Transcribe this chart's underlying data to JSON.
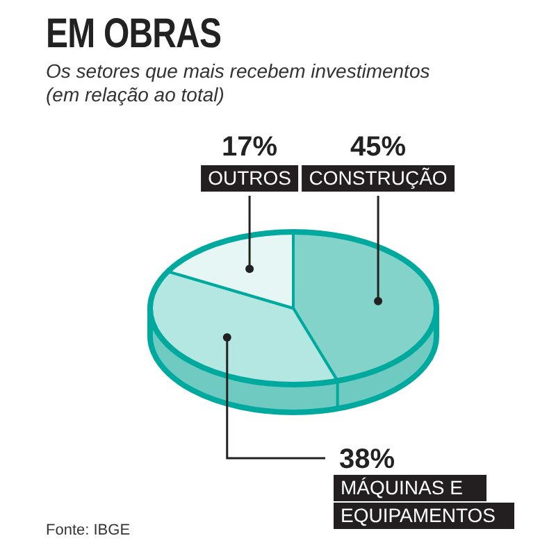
{
  "chart_data": {
    "type": "pie",
    "title": "EM OBRAS",
    "subtitle": "Os setores que mais recebem investimentos (em relação ao total)",
    "categories": [
      "CONSTRUÇÃO",
      "MÁQUINAS E EQUIPAMENTOS",
      "OUTROS"
    ],
    "values": [
      45,
      38,
      17
    ],
    "colors": [
      "#84d3cb",
      "#b4e6e2",
      "#e6f6f5"
    ],
    "value_labels": [
      "45%",
      "38%",
      "17%"
    ],
    "annotations": [
      "Fonte: IBGE"
    ]
  }
}
